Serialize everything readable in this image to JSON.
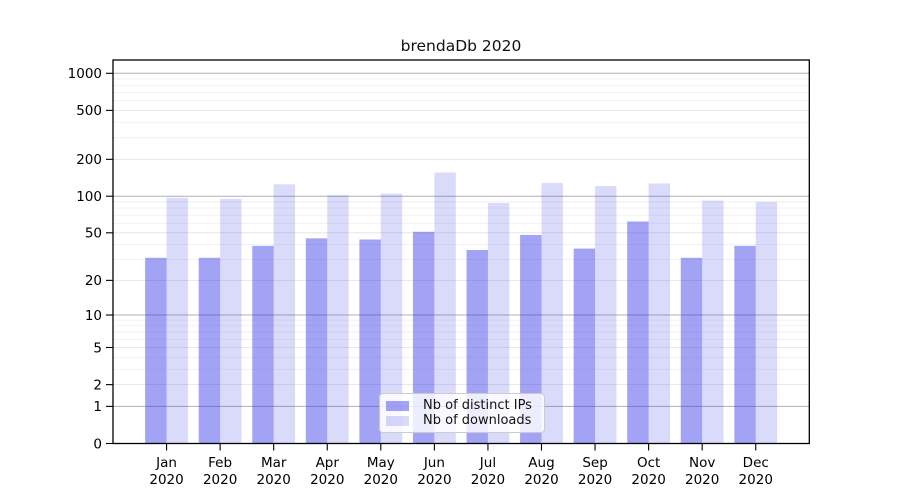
{
  "chart_data": {
    "type": "bar",
    "title": "brendaDb 2020",
    "categories": [
      "Jan",
      "Feb",
      "Mar",
      "Apr",
      "May",
      "Jun",
      "Jul",
      "Aug",
      "Sep",
      "Oct",
      "Nov",
      "Dec"
    ],
    "year_label": "2020",
    "series": [
      {
        "name": "Nb of distinct IPs",
        "color": "rgba(50,50,235,0.45)",
        "values": [
          31,
          31,
          39,
          45,
          44,
          51,
          36,
          48,
          37,
          62,
          31,
          39
        ]
      },
      {
        "name": "Nb of downloads",
        "color": "rgba(50,50,235,0.18)",
        "values": [
          97,
          95,
          125,
          102,
          105,
          156,
          88,
          128,
          121,
          127,
          92,
          90
        ]
      }
    ],
    "y_scale": "log10(1+v)",
    "ylim": [
      0,
      1280
    ],
    "y_ticks": [
      0,
      1,
      2,
      5,
      10,
      20,
      50,
      100,
      200,
      500,
      1000
    ],
    "y_tick_labels": [
      "0",
      "1",
      "2",
      "5",
      "10",
      "20",
      "50",
      "100",
      "200",
      "500",
      "1000"
    ],
    "grid": true,
    "grid_major": [
      1,
      10,
      100,
      1000
    ],
    "grid_mid": [
      2,
      5,
      20,
      50,
      200,
      500
    ],
    "grid_minor": [
      3,
      4,
      6,
      7,
      8,
      9,
      30,
      40,
      60,
      70,
      80,
      90,
      300,
      400,
      600,
      700,
      800,
      900
    ],
    "legend_position": "lower center",
    "xlabel": "",
    "ylabel": ""
  },
  "colors": {
    "background": "#ffffff",
    "spine": "#000000",
    "tick_text": "#000000",
    "grid_major": "#b0b0b0",
    "grid_mid": "#e2e2e2",
    "grid_minor": "#eeeeee",
    "legend_border": "#cccccc",
    "legend_bg": "rgba(255,255,255,0.8)"
  }
}
